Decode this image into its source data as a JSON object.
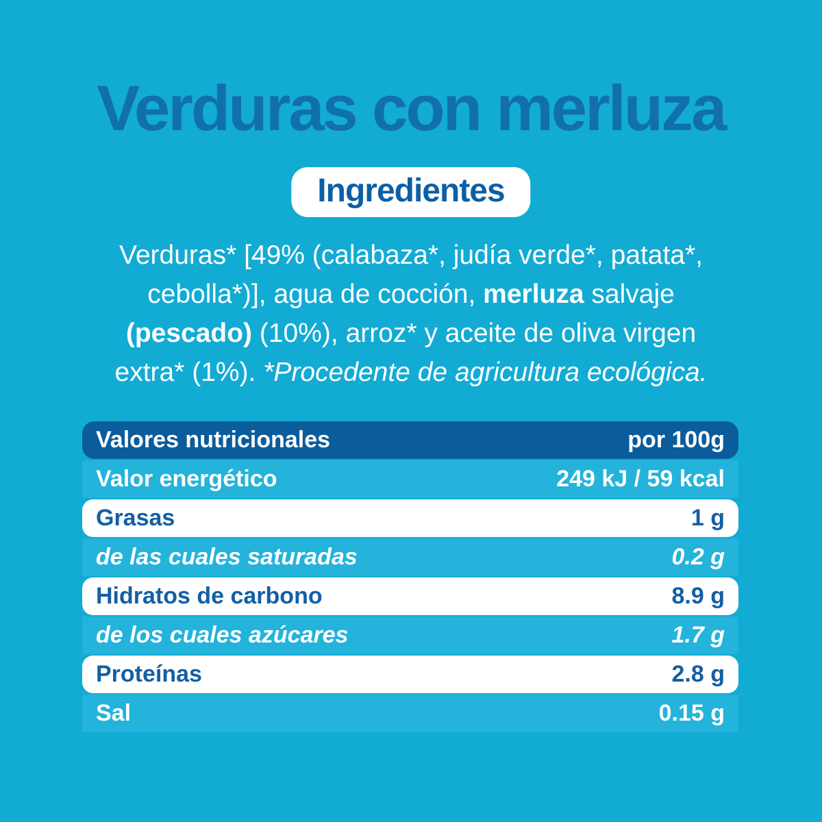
{
  "page": {
    "title": "Verduras con merluza",
    "section_label": "Ingredientes"
  },
  "colors": {
    "background_cyan": "#12ABD4",
    "band_cyan": "#23B3DB",
    "header_blue": "#0A5C9C",
    "text_blue": "#135FA4",
    "title_blue": "#1170AC",
    "white": "#FFFFFF"
  },
  "ingredients": {
    "lines": [
      [
        {
          "text": "Verduras* [49% (calabaza*, judía verde*, patata*,"
        }
      ],
      [
        {
          "text": "cebolla*)], agua de cocción, "
        },
        {
          "text": "merluza",
          "bold": true
        },
        {
          "text": " salvaje"
        }
      ],
      [
        {
          "text": "(pescado)",
          "bold": true
        },
        {
          "text": " (10%), arroz* y aceite de oliva virgen"
        }
      ],
      [
        {
          "text": "extra* (1%). "
        },
        {
          "text": "*Procedente de agricultura ecológica.",
          "italic": true
        }
      ]
    ]
  },
  "nutrition_table": {
    "header": {
      "label": "Valores nutricionales",
      "value": "por 100g"
    },
    "rows": [
      {
        "label": "Valor energético",
        "value": "249 kJ / 59 kcal",
        "style": "band",
        "italic": false
      },
      {
        "label": "Grasas",
        "value": "1 g",
        "style": "white",
        "italic": false
      },
      {
        "label": "de las cuales saturadas",
        "value": "0.2 g",
        "style": "band",
        "italic": true
      },
      {
        "label": "Hidratos de carbono",
        "value": "8.9 g",
        "style": "white",
        "italic": false
      },
      {
        "label": "de los cuales azúcares",
        "value": "1.7 g",
        "style": "band",
        "italic": true
      },
      {
        "label": "Proteínas",
        "value": "2.8 g",
        "style": "white",
        "italic": false
      },
      {
        "label": "Sal",
        "value": "0.15 g",
        "style": "band",
        "italic": false
      }
    ]
  }
}
